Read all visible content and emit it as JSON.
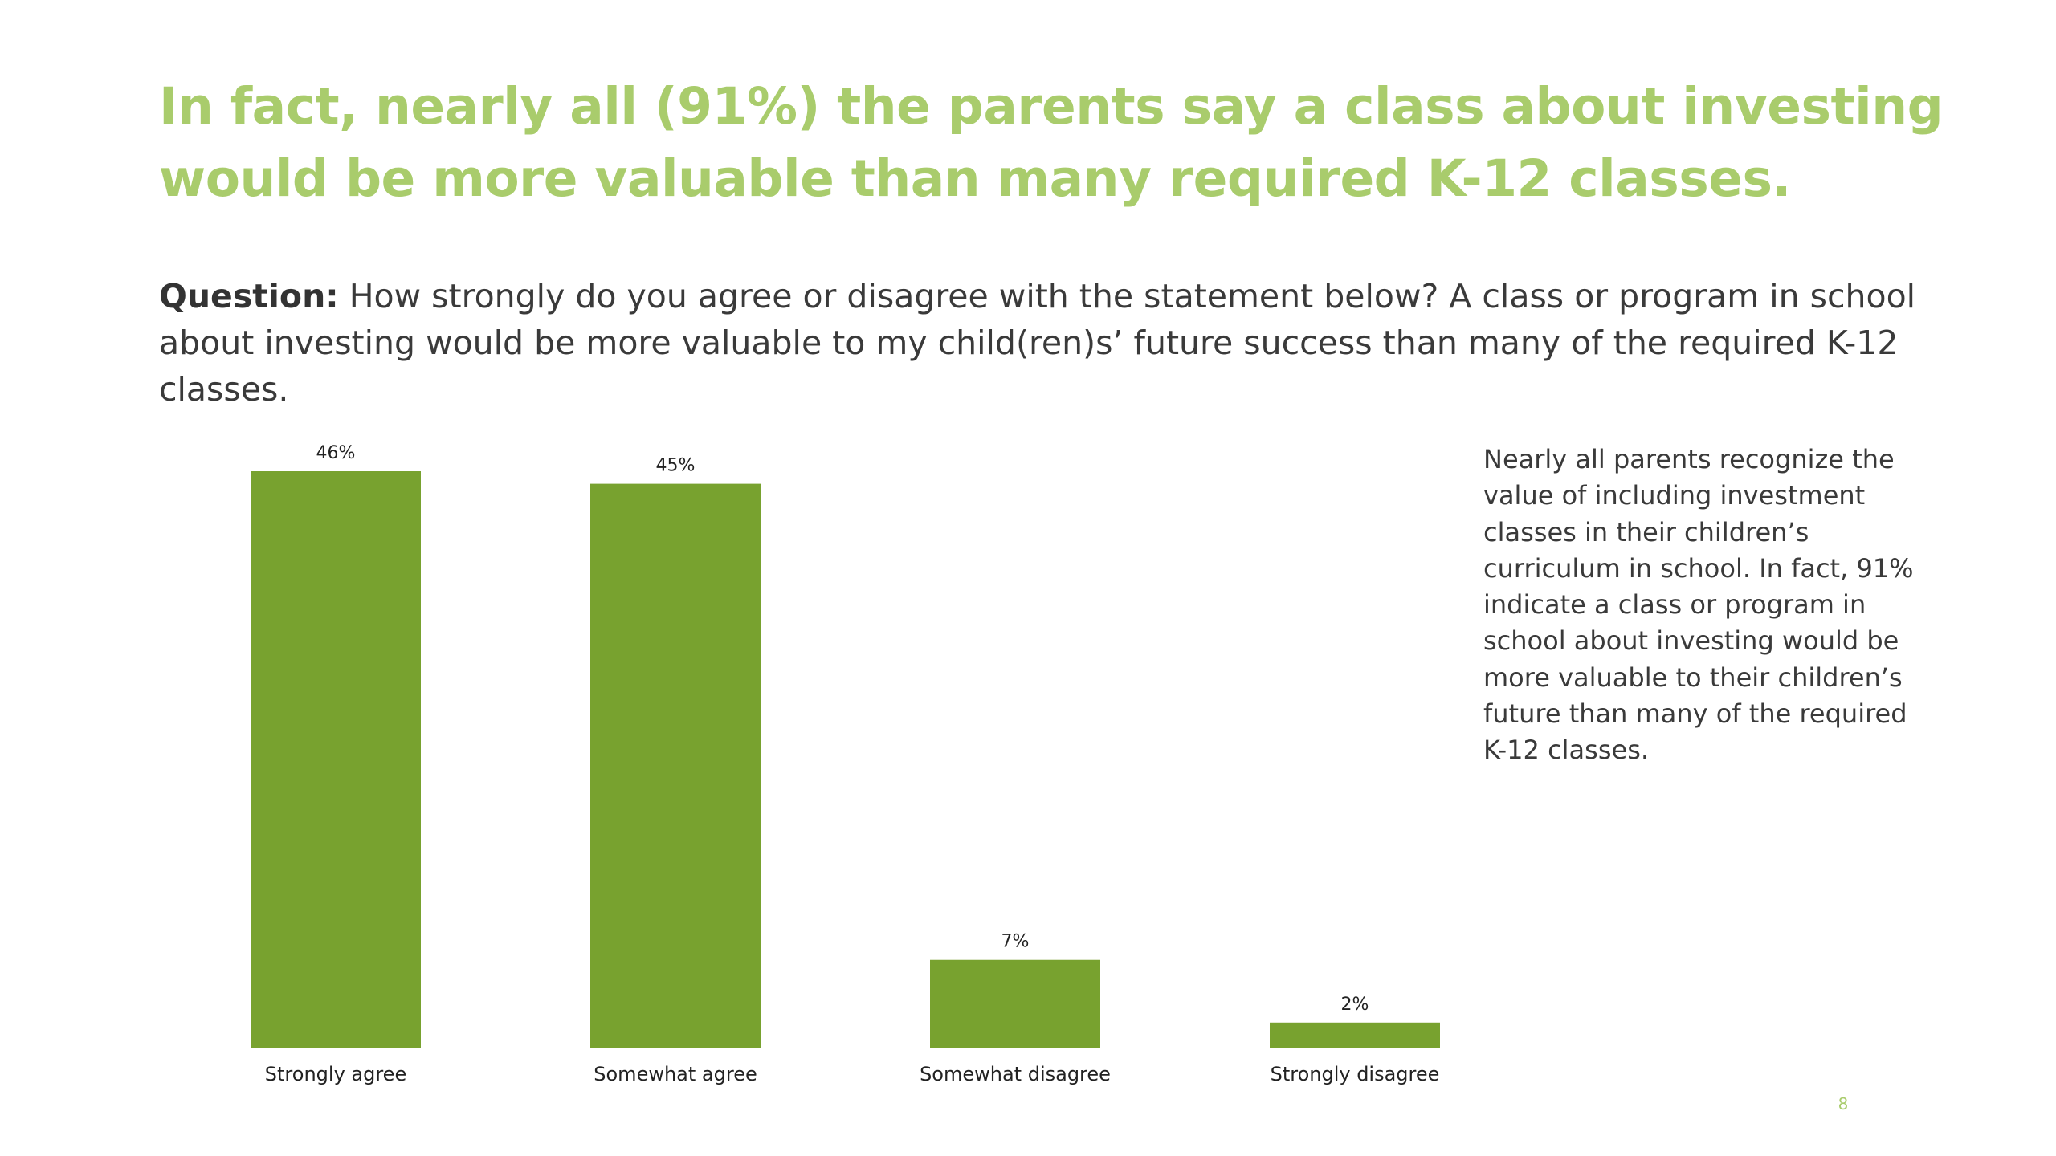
{
  "slide": {
    "title": "In fact, nearly all (91%) the parents say a class about investing would be more valuable than many required K-12 classes.",
    "question_label": "Question:",
    "question_text": " How strongly do you agree or disagree with the statement below? A class or program in school about investing would be more valuable to my child(ren)s’ future success than many of the required K-12 classes.",
    "side_note": "Nearly all parents recognize the value of including investment classes in their children’s curriculum in school. In fact, 91% indicate a class or program in school about investing would be more valuable to their children’s future than many of the required K-12 classes.",
    "page_number": "8"
  },
  "colors": {
    "title": "#a9cc6c",
    "bar": "#78a22f",
    "text": "#3a3a3a"
  },
  "chart_data": {
    "type": "bar",
    "categories": [
      "Strongly agree",
      "Somewhat agree",
      "Somewhat disagree",
      "Strongly disagree"
    ],
    "values": [
      46,
      45,
      7,
      2
    ],
    "data_labels": [
      "46%",
      "45%",
      "7%",
      "2%"
    ],
    "unit": "%",
    "title": "",
    "xlabel": "",
    "ylabel": "",
    "ylim": [
      0,
      46
    ],
    "grid": false,
    "legend": "none"
  }
}
